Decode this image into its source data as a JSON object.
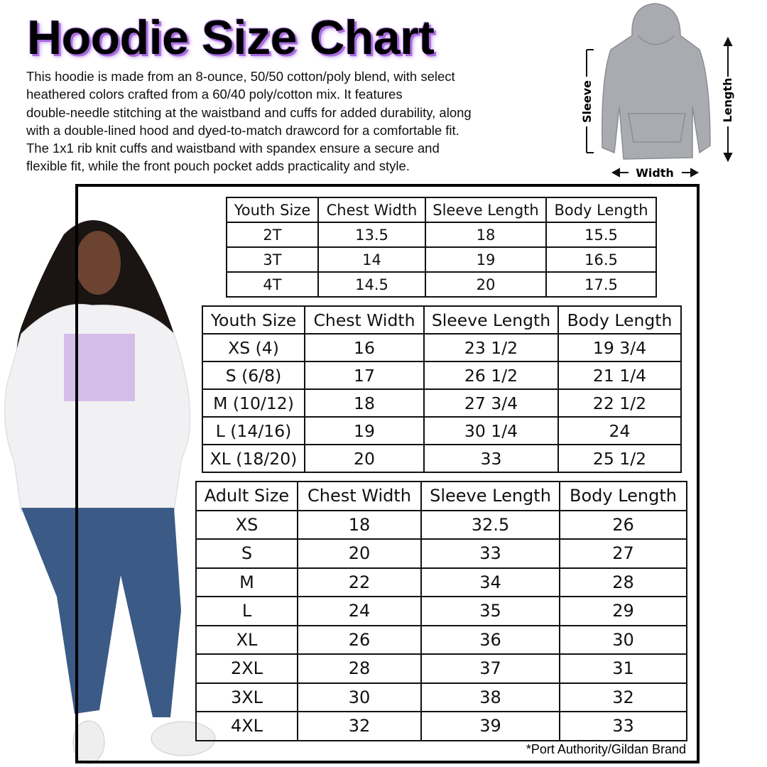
{
  "header": {
    "title": "Hoodie Size Chart",
    "description": [
      "This hoodie is made from an 8-ounce, 50/50 cotton/poly blend, with select",
      "heathered colors crafted from a 60/40 poly/cotton mix. It features",
      "double-needle stitching at the waistband and cuffs for added durability, along",
      "with a double-lined hood and dyed-to-match drawcord for a comfortable fit.",
      "The 1x1 rib knit cuffs and waistband with spandex ensure a secure and",
      "flexible fit, while the front pouch pocket adds practicality and style."
    ]
  },
  "diagram": {
    "sleeve": "Sleeve",
    "length": "Length",
    "width": "Width"
  },
  "tables": [
    {
      "columns": [
        "Youth Size",
        "Chest Width",
        "Sleeve Length",
        "Body Length"
      ],
      "rows": [
        [
          "2T",
          "13.5",
          "18",
          "15.5"
        ],
        [
          "3T",
          "14",
          "19",
          "16.5"
        ],
        [
          "4T",
          "14.5",
          "20",
          "17.5"
        ]
      ]
    },
    {
      "columns": [
        "Youth Size",
        "Chest Width",
        "Sleeve Length",
        "Body Length"
      ],
      "rows": [
        [
          "XS (4)",
          "16",
          "23 1/2",
          "19 3/4"
        ],
        [
          "S (6/8)",
          "17",
          "26 1/2",
          "21 1/4"
        ],
        [
          "M (10/12)",
          "18",
          "27 3/4",
          "22 1/2"
        ],
        [
          "L (14/16)",
          "19",
          "30 1/4",
          "24"
        ],
        [
          "XL (18/20)",
          "20",
          "33",
          "25 1/2"
        ]
      ]
    },
    {
      "columns": [
        "Adult Size",
        "Chest Width",
        "Sleeve Length",
        "Body Length"
      ],
      "rows": [
        [
          "XS",
          "18",
          "32.5",
          "26"
        ],
        [
          "S",
          "20",
          "33",
          "27"
        ],
        [
          "M",
          "22",
          "34",
          "28"
        ],
        [
          "L",
          "24",
          "35",
          "29"
        ],
        [
          "XL",
          "26",
          "36",
          "30"
        ],
        [
          "2XL",
          "28",
          "37",
          "31"
        ],
        [
          "3XL",
          "30",
          "38",
          "32"
        ],
        [
          "4XL",
          "32",
          "39",
          "33"
        ]
      ]
    }
  ],
  "footnote": "*Port Authority/Gildan Brand"
}
